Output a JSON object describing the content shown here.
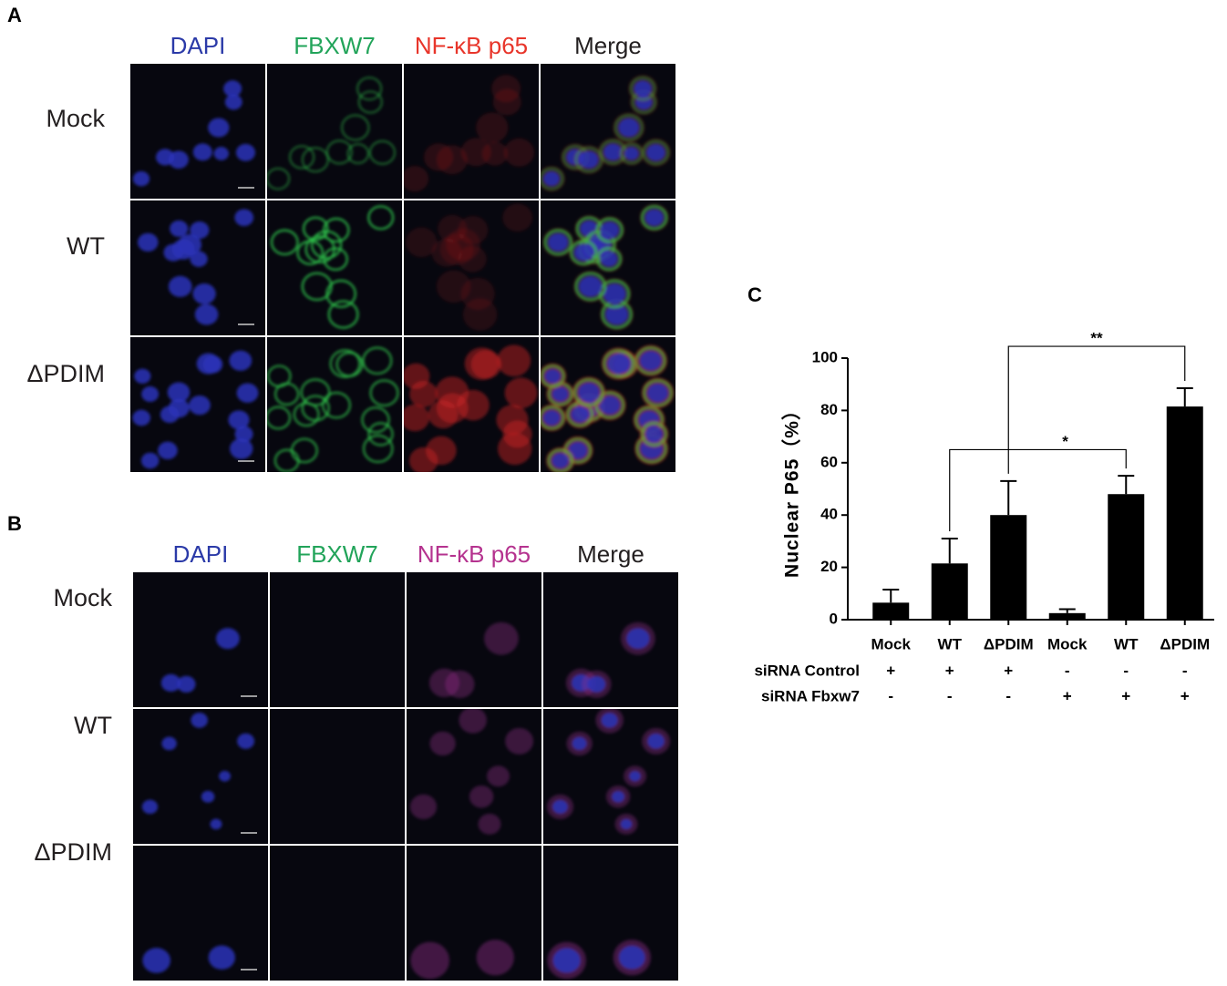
{
  "panel_a": {
    "label": "A",
    "columns": [
      {
        "text": "DAPI",
        "color": "#2b3aa8"
      },
      {
        "text": "FBXW7",
        "color": "#22a45a"
      },
      {
        "text": "NF-κB p65",
        "color": "#e8352a"
      },
      {
        "text": "Merge",
        "color": "#231f20"
      }
    ],
    "rows": [
      "Mock",
      "WT",
      "ΔPDIM"
    ]
  },
  "panel_b": {
    "label": "B",
    "columns": [
      {
        "text": "DAPI",
        "color": "#2b3aa8"
      },
      {
        "text": "FBXW7",
        "color": "#22a45a"
      },
      {
        "text": "NF-κB p65",
        "color": "#b5338f"
      },
      {
        "text": "Merge",
        "color": "#231f20"
      }
    ],
    "rows": [
      "Mock",
      "WT",
      "ΔPDIM"
    ]
  },
  "chart_data": {
    "type": "bar",
    "panel_label": "C",
    "y_label": "Nuclear P65（%）",
    "categories": [
      "Mock",
      "WT",
      "ΔPDIM",
      "Mock",
      "WT",
      "ΔPDIM"
    ],
    "values": [
      6.5,
      21.5,
      40,
      2.5,
      48,
      81.5
    ],
    "errors": [
      5,
      9.5,
      13,
      1.5,
      7,
      7
    ],
    "color": "#000000",
    "ylim": [
      0,
      100
    ],
    "yticks": [
      0,
      20,
      40,
      60,
      80,
      100
    ],
    "condition_rows": [
      {
        "label": "siRNA Control",
        "values": [
          "+",
          "+",
          "+",
          "-",
          "-",
          "-"
        ]
      },
      {
        "label": "siRNA Fbxw7",
        "values": [
          "-",
          "-",
          "-",
          "+",
          "+",
          "+"
        ]
      }
    ],
    "comparisons": [
      {
        "from": 1,
        "to": 4,
        "label": "*"
      },
      {
        "from": 2,
        "to": 5,
        "label": "**"
      }
    ]
  }
}
